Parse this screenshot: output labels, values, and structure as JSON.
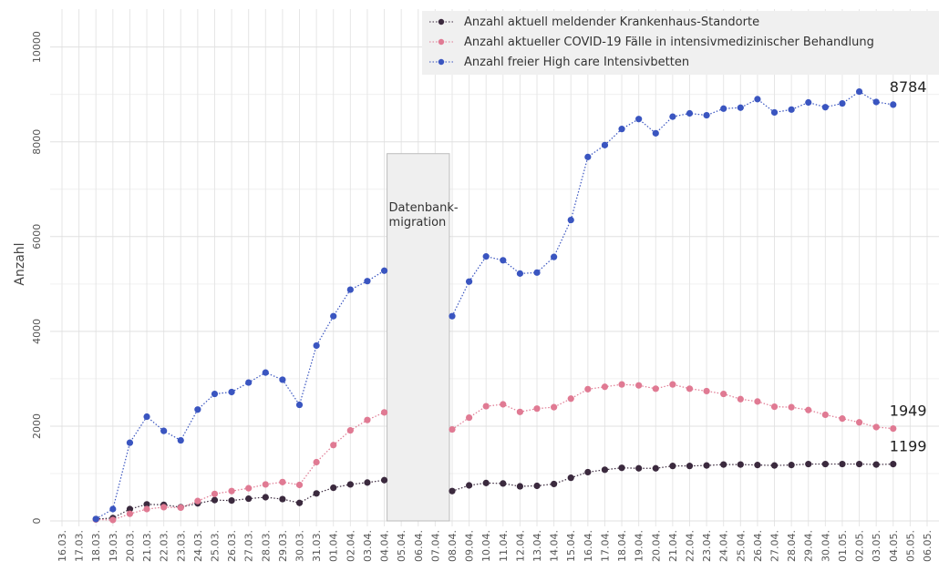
{
  "chart_data": {
    "type": "line",
    "y_label": "Anzahl",
    "categories": [
      "16.03.",
      "17.03.",
      "18.03.",
      "19.03.",
      "20.03.",
      "21.03.",
      "22.03.",
      "23.03.",
      "24.03.",
      "25.03.",
      "26.03.",
      "27.03.",
      "28.03.",
      "29.03.",
      "30.03.",
      "31.03.",
      "01.04.",
      "02.04.",
      "03.04.",
      "04.04.",
      "05.04.",
      "06.04.",
      "07.04.",
      "08.04.",
      "09.04.",
      "10.04.",
      "11.04.",
      "12.04.",
      "13.04.",
      "14.04.",
      "15.04.",
      "16.04.",
      "17.04.",
      "18.04.",
      "19.04.",
      "20.04.",
      "21.04.",
      "22.04.",
      "23.04.",
      "24.04.",
      "25.04.",
      "26.04.",
      "27.04.",
      "28.04.",
      "29.04.",
      "30.04.",
      "01.05.",
      "02.05.",
      "03.05.",
      "04.05.",
      "05.05.",
      "06.05."
    ],
    "series": [
      {
        "name": "Anzahl aktuell meldender Krankenhaus-Standorte",
        "color": "#3b2a3e",
        "values": [
          null,
          null,
          40,
          60,
          250,
          350,
          340,
          290,
          370,
          440,
          430,
          470,
          500,
          460,
          380,
          580,
          700,
          770,
          810,
          860,
          null,
          null,
          null,
          630,
          750,
          800,
          790,
          730,
          740,
          780,
          910,
          1030,
          1080,
          1120,
          1110,
          1110,
          1160,
          1160,
          1170,
          1190,
          1190,
          1180,
          1170,
          1180,
          1200,
          1200,
          1200,
          1200,
          1190,
          1199,
          null,
          null
        ]
      },
      {
        "name": "Anzahl aktueller COVID-19 Fälle in intensivmedizinischer Behandlung",
        "color": "#e07a93",
        "values": [
          null,
          null,
          30,
          20,
          150,
          250,
          290,
          280,
          420,
          570,
          630,
          690,
          770,
          820,
          760,
          1240,
          1600,
          1910,
          2130,
          2290,
          null,
          null,
          null,
          1930,
          2180,
          2420,
          2460,
          2300,
          2370,
          2400,
          2580,
          2780,
          2830,
          2880,
          2860,
          2790,
          2880,
          2790,
          2740,
          2680,
          2570,
          2520,
          2410,
          2400,
          2340,
          2240,
          2160,
          2080,
          1980,
          1949,
          null,
          null
        ]
      },
      {
        "name": "Anzahl freier High care Intensivbetten",
        "color": "#3a55c0",
        "values": [
          null,
          null,
          40,
          250,
          1650,
          2200,
          1900,
          1700,
          2350,
          2680,
          2720,
          2920,
          3130,
          2980,
          2450,
          3700,
          4320,
          4880,
          5060,
          5280,
          null,
          null,
          null,
          4320,
          5050,
          5580,
          5500,
          5220,
          5240,
          5570,
          6350,
          7680,
          7930,
          8270,
          8480,
          8180,
          8530,
          8600,
          8560,
          8700,
          8720,
          8900,
          8620,
          8680,
          8830,
          8730,
          8810,
          9060,
          8840,
          8784,
          null,
          null
        ]
      }
    ],
    "ylim": [
      -115,
      10800
    ],
    "yticks": [
      0,
      2000,
      4000,
      6000,
      8000,
      10000
    ],
    "grid": true,
    "legend": "top-right",
    "annotation": {
      "text": [
        "Datenbank-",
        "migration"
      ],
      "from": "04.04.",
      "to": "08.04.",
      "top": 7750
    }
  }
}
